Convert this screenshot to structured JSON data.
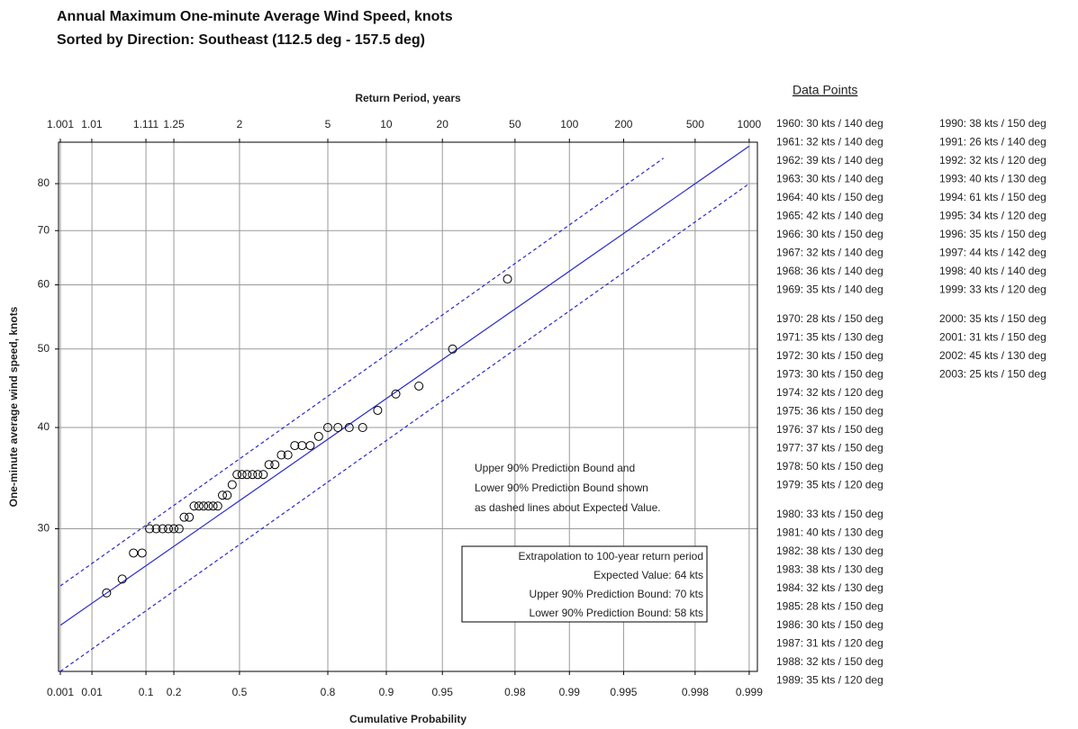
{
  "chart_data": {
    "type": "scatter",
    "title": "Annual Maximum One-minute Average Wind Speed, knots",
    "subtitle": "Sorted by Direction: Southeast (112.5 deg - 157.5 deg)",
    "x_label": "Cumulative Probability",
    "x2_label": "Return Period, years",
    "y_label": "One-minute average wind speed, knots",
    "xscale": "gumbel",
    "ylog": true,
    "grid": true,
    "xlim": [
      0.00085,
      0.9991
    ],
    "xticks": [
      0.001,
      0.01,
      0.1,
      0.2,
      0.5,
      0.8,
      0.9,
      0.95,
      0.98,
      0.99,
      0.995,
      0.998,
      0.999
    ],
    "x2ticks": [
      1.001,
      1.01,
      1.111,
      1.25,
      2,
      5,
      10,
      20,
      50,
      100,
      200,
      500,
      1000
    ],
    "ylim": [
      20,
      90
    ],
    "yticks": [
      30,
      40,
      50,
      60,
      70,
      80
    ],
    "series": [
      {
        "type": "scatter",
        "color": "#000000",
        "x": [
          0.022,
          0.044,
          0.067,
          0.089,
          0.111,
          0.133,
          0.156,
          0.178,
          0.2,
          0.222,
          0.244,
          0.267,
          0.289,
          0.311,
          0.333,
          0.356,
          0.378,
          0.4,
          0.422,
          0.444,
          0.467,
          0.489,
          0.511,
          0.533,
          0.556,
          0.578,
          0.6,
          0.622,
          0.644,
          0.667,
          0.689,
          0.711,
          0.733,
          0.756,
          0.778,
          0.8,
          0.822,
          0.844,
          0.867,
          0.889,
          0.911,
          0.933,
          0.956,
          0.978
        ],
        "values": [
          25,
          26,
          28,
          28,
          30,
          30,
          30,
          30,
          30,
          30,
          31,
          31,
          32,
          32,
          32,
          32,
          32,
          32,
          33,
          33,
          34,
          35,
          35,
          35,
          35,
          35,
          35,
          36,
          36,
          37,
          37,
          38,
          38,
          38,
          39,
          40,
          40,
          40,
          40,
          42,
          44,
          45,
          50,
          61
        ]
      },
      {
        "type": "line",
        "color": "#2a2acc",
        "dashed": false,
        "x": [
          0.001,
          0.999
        ],
        "values": [
          22.8,
          89
        ]
      },
      {
        "type": "line",
        "color": "#2a2acc",
        "dashed": true,
        "x": [
          0.001,
          0.997
        ],
        "values": [
          25.5,
          86
        ]
      },
      {
        "type": "line",
        "color": "#2a2acc",
        "dashed": true,
        "x": [
          0.001,
          0.999
        ],
        "values": [
          20,
          80
        ]
      }
    ],
    "annotations": [
      "Upper 90% Prediction Bound and",
      "Lower 90% Prediction Bound shown",
      "as dashed lines about Expected Value."
    ],
    "box": [
      "Extrapolation to 100-year return period",
      "Expected Value: 64 kts",
      "Upper 90% Prediction Bound: 70 kts",
      "Lower 90% Prediction Bound: 58 kts"
    ]
  },
  "data_points": {
    "title": "Data Points",
    "entries": [
      "1960: 30 kts / 140 deg",
      "1961: 32 kts / 140 deg",
      "1962: 39 kts / 140 deg",
      "1963: 30 kts / 140 deg",
      "1964: 40 kts / 150 deg",
      "1965: 42 kts / 140 deg",
      "1966: 30 kts / 150 deg",
      "1967: 32 kts / 140 deg",
      "1968: 36 kts / 140 deg",
      "1969: 35 kts / 140 deg",
      "1970: 28 kts / 150 deg",
      "1971: 35 kts / 130 deg",
      "1972: 30 kts / 150 deg",
      "1973: 30 kts / 150 deg",
      "1974: 32 kts / 120 deg",
      "1975: 36 kts / 150 deg",
      "1976: 37 kts / 150 deg",
      "1977: 37 kts / 150 deg",
      "1978: 50 kts / 150 deg",
      "1979: 35 kts / 120 deg",
      "1980: 33 kts / 150 deg",
      "1981: 40 kts / 130 deg",
      "1982: 38 kts / 130 deg",
      "1983: 38 kts / 130 deg",
      "1984: 32 kts / 130 deg",
      "1985: 28 kts / 150 deg",
      "1986: 30 kts / 150 deg",
      "1987: 31 kts / 120 deg",
      "1988: 32 kts / 150 deg",
      "1989: 35 kts / 120 deg",
      "1990: 38 kts / 150 deg",
      "1991: 26 kts / 140 deg",
      "1992: 32 kts / 120 deg",
      "1993: 40 kts / 130 deg",
      "1994: 61 kts / 150 deg",
      "1995: 34 kts / 120 deg",
      "1996: 35 kts / 150 deg",
      "1997: 44 kts / 142 deg",
      "1998: 40 kts / 140 deg",
      "1999: 33 kts / 120 deg",
      "2000: 35 kts / 150 deg",
      "2001: 31 kts / 150 deg",
      "2002: 45 kts / 130 deg",
      "2003: 25 kts / 150 deg"
    ]
  }
}
